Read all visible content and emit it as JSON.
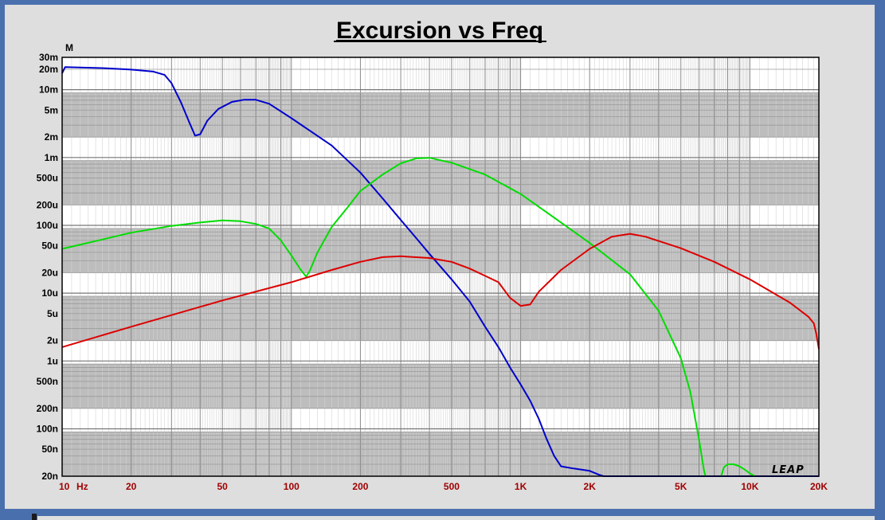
{
  "chart_data": {
    "type": "line",
    "title": "Excursion vs Freq",
    "ylabel": "M",
    "x_scale": "log",
    "y_scale": "log",
    "xlim": [
      10,
      20000
    ],
    "ylim": [
      2e-08,
      0.03
    ],
    "x_unit": "Hz",
    "grid": true,
    "watermark": "LEAP",
    "y_ticks": [
      {
        "value": 0.03,
        "label": "30m"
      },
      {
        "value": 0.02,
        "label": "20m"
      },
      {
        "value": 0.01,
        "label": "10m"
      },
      {
        "value": 0.005,
        "label": "5m"
      },
      {
        "value": 0.002,
        "label": "2m"
      },
      {
        "value": 0.001,
        "label": "1m"
      },
      {
        "value": 0.0005,
        "label": "500u"
      },
      {
        "value": 0.0002,
        "label": "200u"
      },
      {
        "value": 0.0001,
        "label": "100u"
      },
      {
        "value": 5e-05,
        "label": "50u"
      },
      {
        "value": 2e-05,
        "label": "20u"
      },
      {
        "value": 1e-05,
        "label": "10u"
      },
      {
        "value": 5e-06,
        "label": "5u"
      },
      {
        "value": 2e-06,
        "label": "2u"
      },
      {
        "value": 1e-06,
        "label": "1u"
      },
      {
        "value": 5e-07,
        "label": "500n"
      },
      {
        "value": 2e-07,
        "label": "200n"
      },
      {
        "value": 1e-07,
        "label": "100n"
      },
      {
        "value": 5e-08,
        "label": "50n"
      },
      {
        "value": 2e-08,
        "label": "20n"
      }
    ],
    "x_ticks": [
      {
        "value": 10,
        "label": "10"
      },
      {
        "value": 20,
        "label": "20"
      },
      {
        "value": 50,
        "label": "50"
      },
      {
        "value": 100,
        "label": "100"
      },
      {
        "value": 200,
        "label": "200"
      },
      {
        "value": 500,
        "label": "500"
      },
      {
        "value": 1000,
        "label": "1K"
      },
      {
        "value": 2000,
        "label": "2K"
      },
      {
        "value": 5000,
        "label": "5K"
      },
      {
        "value": 10000,
        "label": "10K"
      },
      {
        "value": 20000,
        "label": "20K"
      }
    ],
    "series": [
      {
        "color": "#0000cc",
        "points": [
          [
            10,
            0.0175
          ],
          [
            10.3,
            0.0215
          ],
          [
            15,
            0.0208
          ],
          [
            20,
            0.0198
          ],
          [
            25,
            0.0185
          ],
          [
            28,
            0.0165
          ],
          [
            30,
            0.0125
          ],
          [
            33,
            0.0065
          ],
          [
            36,
            0.0032
          ],
          [
            38,
            0.0021
          ],
          [
            40,
            0.0022
          ],
          [
            43,
            0.0035
          ],
          [
            48,
            0.0052
          ],
          [
            55,
            0.0066
          ],
          [
            62,
            0.0071
          ],
          [
            70,
            0.0071
          ],
          [
            80,
            0.0062
          ],
          [
            100,
            0.0038
          ],
          [
            150,
            0.0015
          ],
          [
            200,
            0.0006
          ],
          [
            250,
            0.00025
          ],
          [
            300,
            0.00012
          ],
          [
            350,
            6.5e-05
          ],
          [
            400,
            3.8e-05
          ],
          [
            500,
            1.6e-05
          ],
          [
            600,
            7.5e-06
          ],
          [
            700,
            3.2e-06
          ],
          [
            800,
            1.6e-06
          ],
          [
            900,
            8e-07
          ],
          [
            1000,
            4.5e-07
          ],
          [
            1100,
            2.6e-07
          ],
          [
            1200,
            1.4e-07
          ],
          [
            1300,
            7e-08
          ],
          [
            1400,
            4e-08
          ],
          [
            1500,
            2.8e-08
          ],
          [
            1700,
            2.6e-08
          ],
          [
            2000,
            2.4e-08
          ],
          [
            2200,
            2.1e-08
          ],
          [
            2300,
            2e-08
          ],
          [
            20000,
            2e-08
          ]
        ]
      },
      {
        "color": "#00dd00",
        "points": [
          [
            10,
            4.5e-05
          ],
          [
            15,
            6.2e-05
          ],
          [
            20,
            7.8e-05
          ],
          [
            30,
            9.8e-05
          ],
          [
            40,
            0.00011
          ],
          [
            50,
            0.000118
          ],
          [
            60,
            0.000115
          ],
          [
            70,
            0.000105
          ],
          [
            80,
            9e-05
          ],
          [
            90,
            6e-05
          ],
          [
            100,
            3.6e-05
          ],
          [
            110,
            2.2e-05
          ],
          [
            116,
            1.75e-05
          ],
          [
            120,
            2.1e-05
          ],
          [
            130,
            4e-05
          ],
          [
            150,
            9.5e-05
          ],
          [
            175,
            0.00018
          ],
          [
            200,
            0.00032
          ],
          [
            250,
            0.00056
          ],
          [
            300,
            0.00082
          ],
          [
            350,
            0.00097
          ],
          [
            400,
            0.00099
          ],
          [
            500,
            0.00084
          ],
          [
            700,
            0.00056
          ],
          [
            1000,
            0.00029
          ],
          [
            1500,
            0.00011
          ],
          [
            2000,
            5.5e-05
          ],
          [
            3000,
            1.9e-05
          ],
          [
            4000,
            5.5e-06
          ],
          [
            5000,
            1.1e-06
          ],
          [
            5500,
            3.5e-07
          ],
          [
            6000,
            7e-08
          ],
          [
            6300,
            2.5e-08
          ],
          [
            6400,
            2e-08
          ]
        ]
      },
      {
        "color": "#00dd00",
        "points": [
          [
            7500,
            2e-08
          ],
          [
            7700,
            2.7e-08
          ],
          [
            8000,
            3e-08
          ],
          [
            8500,
            3e-08
          ],
          [
            9000,
            2.8e-08
          ],
          [
            9500,
            2.5e-08
          ],
          [
            10000,
            2.2e-08
          ],
          [
            10500,
            2e-08
          ]
        ]
      },
      {
        "color": "#dd0000",
        "points": [
          [
            10,
            1.6e-06
          ],
          [
            20,
            3.2e-06
          ],
          [
            50,
            7.8e-06
          ],
          [
            100,
            1.45e-05
          ],
          [
            150,
            2.2e-05
          ],
          [
            200,
            2.9e-05
          ],
          [
            250,
            3.4e-05
          ],
          [
            300,
            3.5e-05
          ],
          [
            400,
            3.3e-05
          ],
          [
            500,
            2.9e-05
          ],
          [
            600,
            2.3e-05
          ],
          [
            700,
            1.8e-05
          ],
          [
            800,
            1.45e-05
          ],
          [
            900,
            8.5e-06
          ],
          [
            1000,
            6.5e-06
          ],
          [
            1100,
            6.8e-06
          ],
          [
            1200,
            1.05e-05
          ],
          [
            1500,
            2.2e-05
          ],
          [
            2000,
            4.5e-05
          ],
          [
            2500,
            6.8e-05
          ],
          [
            3000,
            7.5e-05
          ],
          [
            3500,
            6.8e-05
          ],
          [
            5000,
            4.6e-05
          ],
          [
            7000,
            2.9e-05
          ],
          [
            10000,
            1.6e-05
          ],
          [
            15000,
            7.2e-06
          ],
          [
            18000,
            4.5e-06
          ],
          [
            19000,
            3.6e-06
          ],
          [
            19500,
            2.5e-06
          ],
          [
            20000,
            1.5e-06
          ]
        ]
      }
    ]
  }
}
